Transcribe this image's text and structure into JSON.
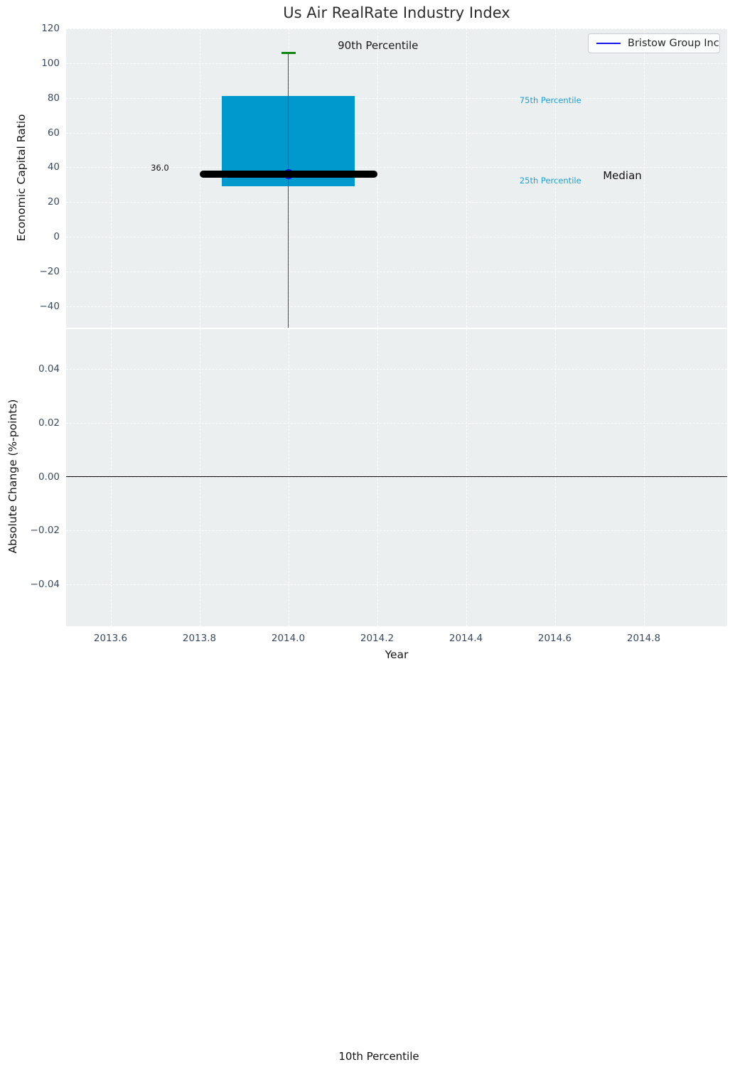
{
  "title": "Us Air RealRate Industry Index",
  "legend": {
    "label": "Bristow Group Inc",
    "line_color": "#1414f0",
    "position": "upper right"
  },
  "colors": {
    "axes_background": "#eceff0",
    "grid": "#ffffff",
    "box_fill": "#0099cd",
    "median_line": "#000000",
    "whisker": "#4a4a4a",
    "cap_90th": "#108410",
    "marker": "#1414f0",
    "tick_label": "#3a4a5e",
    "cyan_label": "#1e9fd1"
  },
  "figure_annotations": [
    {
      "text": "10th Percentile"
    }
  ],
  "chart_data": [
    {
      "type": "box",
      "title": "Us Air RealRate Industry Index",
      "ylabel": "Economic Capital Ratio",
      "xlim": [
        2013.5,
        2014.988
      ],
      "ylim": [
        -52.3,
        120
      ],
      "grid": true,
      "yticks": [
        {
          "v": 120,
          "label": "120"
        },
        {
          "v": 100,
          "label": "100"
        },
        {
          "v": 80,
          "label": "80"
        },
        {
          "v": 60,
          "label": "60"
        },
        {
          "v": 40,
          "label": "40"
        },
        {
          "v": 20,
          "label": "20"
        },
        {
          "v": 0,
          "label": "0"
        },
        {
          "v": -20,
          "label": "−20"
        },
        {
          "v": -40,
          "label": "−40"
        }
      ],
      "box": {
        "x": 2014.0,
        "box_width_years": 0.3,
        "q25": 29,
        "median": 36.0,
        "q75": 81,
        "p90": 106,
        "p10": "below axis (whisker clipped at axis bottom)",
        "median_label": "36.0",
        "median_line_span": [
          2013.8,
          2014.2
        ]
      },
      "point": {
        "name": "Bristow Group Inc",
        "x": 2014.0,
        "y": 36.0
      },
      "annotations": [
        {
          "text": "90th Percentile",
          "x": 2014.202,
          "y": 110.0,
          "color": "#1a1a1a",
          "size": 15
        },
        {
          "text": "75th Percentile",
          "x": 2014.59,
          "y": 78.7,
          "color": "#1e9fd1",
          "size": 11.5
        },
        {
          "text": "25th Percentile",
          "x": 2014.59,
          "y": 32.4,
          "color": "#1e9fd1",
          "size": 11.5
        },
        {
          "text": "Median",
          "x": 2014.752,
          "y": 35.3,
          "color": "#111111",
          "size": 15
        },
        {
          "text": "36.0",
          "x": 2013.711,
          "y": 39.8,
          "color": "#111111",
          "size": 11.5
        }
      ]
    },
    {
      "type": "line",
      "ylabel": "Absolute Change (%-points)",
      "xlabel": "Year",
      "xlim": [
        2013.5,
        2014.988
      ],
      "ylim": [
        -0.0555,
        0.0548
      ],
      "grid": true,
      "zero_line": 0.0,
      "yticks": [
        {
          "v": 0.04,
          "label": "0.04"
        },
        {
          "v": 0.02,
          "label": "0.02"
        },
        {
          "v": 0.0,
          "label": "0.00"
        },
        {
          "v": -0.02,
          "label": "−0.02"
        },
        {
          "v": -0.04,
          "label": "−0.04"
        }
      ],
      "xticks": [
        {
          "v": 2013.6,
          "label": "2013.6"
        },
        {
          "v": 2013.8,
          "label": "2013.8"
        },
        {
          "v": 2014.0,
          "label": "2014.0"
        },
        {
          "v": 2014.2,
          "label": "2014.2"
        },
        {
          "v": 2014.4,
          "label": "2014.4"
        },
        {
          "v": 2014.6,
          "label": "2014.6"
        },
        {
          "v": 2014.8,
          "label": "2014.8"
        }
      ]
    }
  ]
}
